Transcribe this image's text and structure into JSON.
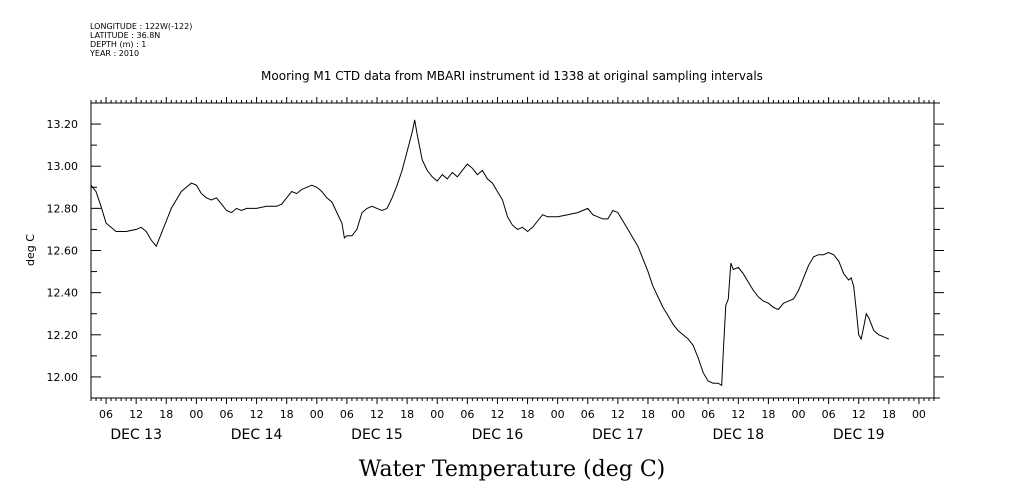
{
  "header": {
    "lines": [
      "LONGITUDE : 122W(-122)",
      "LATITUDE : 36.8N",
      "DEPTH (m) : 1",
      "YEAR : 2010"
    ]
  },
  "chart_data": {
    "type": "line",
    "title": "Mooring M1 CTD data from MBARI instrument id 1338 at original sampling intervals",
    "xlabel": "Water Temperature (deg C)",
    "ylabel": "deg C",
    "ylim": [
      11.9,
      13.3
    ],
    "yticks": [
      12.0,
      12.2,
      12.4,
      12.6,
      12.8,
      13.0,
      13.2
    ],
    "ytick_labels": [
      "12.00",
      "12.20",
      "12.40",
      "12.60",
      "12.80",
      "13.00",
      "13.20"
    ],
    "x_units": "hours since 2010-12-13 00:00",
    "xlim": [
      3,
      171
    ],
    "hour_ticks": [
      {
        "h": 6,
        "label": "06"
      },
      {
        "h": 12,
        "label": "12"
      },
      {
        "h": 18,
        "label": "18"
      },
      {
        "h": 24,
        "label": "00"
      },
      {
        "h": 30,
        "label": "06"
      },
      {
        "h": 36,
        "label": "12"
      },
      {
        "h": 42,
        "label": "18"
      },
      {
        "h": 48,
        "label": "00"
      },
      {
        "h": 54,
        "label": "06"
      },
      {
        "h": 60,
        "label": "12"
      },
      {
        "h": 66,
        "label": "18"
      },
      {
        "h": 72,
        "label": "00"
      },
      {
        "h": 78,
        "label": "06"
      },
      {
        "h": 84,
        "label": "12"
      },
      {
        "h": 90,
        "label": "18"
      },
      {
        "h": 96,
        "label": "00"
      },
      {
        "h": 102,
        "label": "06"
      },
      {
        "h": 108,
        "label": "12"
      },
      {
        "h": 114,
        "label": "18"
      },
      {
        "h": 120,
        "label": "00"
      },
      {
        "h": 126,
        "label": "06"
      },
      {
        "h": 132,
        "label": "12"
      },
      {
        "h": 138,
        "label": "18"
      },
      {
        "h": 144,
        "label": "00"
      },
      {
        "h": 150,
        "label": "06"
      },
      {
        "h": 156,
        "label": "12"
      },
      {
        "h": 162,
        "label": "18"
      },
      {
        "h": 168,
        "label": "00"
      }
    ],
    "day_labels": [
      {
        "h": 12,
        "label": "DEC 13"
      },
      {
        "h": 36,
        "label": "DEC 14"
      },
      {
        "h": 60,
        "label": "DEC 15"
      },
      {
        "h": 84,
        "label": "DEC 16"
      },
      {
        "h": 108,
        "label": "DEC 17"
      },
      {
        "h": 132,
        "label": "DEC 18"
      },
      {
        "h": 156,
        "label": "DEC 19"
      }
    ],
    "grid": false,
    "series": [
      {
        "points": [
          [
            3,
            12.91
          ],
          [
            4,
            12.88
          ],
          [
            5,
            12.81
          ],
          [
            6,
            12.73
          ],
          [
            8,
            12.69
          ],
          [
            10,
            12.69
          ],
          [
            12,
            12.7
          ],
          [
            13,
            12.71
          ],
          [
            14,
            12.69
          ],
          [
            15,
            12.65
          ],
          [
            16,
            12.62
          ],
          [
            17,
            12.68
          ],
          [
            18,
            12.74
          ],
          [
            19,
            12.8
          ],
          [
            20,
            12.84
          ],
          [
            21,
            12.88
          ],
          [
            22,
            12.9
          ],
          [
            23,
            12.92
          ],
          [
            24,
            12.91
          ],
          [
            25,
            12.87
          ],
          [
            26,
            12.85
          ],
          [
            27,
            12.84
          ],
          [
            28,
            12.85
          ],
          [
            29,
            12.82
          ],
          [
            30,
            12.79
          ],
          [
            31,
            12.78
          ],
          [
            32,
            12.8
          ],
          [
            33,
            12.79
          ],
          [
            34,
            12.8
          ],
          [
            36,
            12.8
          ],
          [
            38,
            12.81
          ],
          [
            40,
            12.81
          ],
          [
            41,
            12.82
          ],
          [
            42,
            12.85
          ],
          [
            43,
            12.88
          ],
          [
            44,
            12.87
          ],
          [
            45,
            12.89
          ],
          [
            46,
            12.9
          ],
          [
            47,
            12.91
          ],
          [
            48,
            12.9
          ],
          [
            49,
            12.88
          ],
          [
            50,
            12.85
          ],
          [
            51,
            12.83
          ],
          [
            52,
            12.78
          ],
          [
            53,
            12.73
          ],
          [
            53.5,
            12.66
          ],
          [
            54,
            12.67
          ],
          [
            55,
            12.67
          ],
          [
            56,
            12.7
          ],
          [
            57,
            12.78
          ],
          [
            58,
            12.8
          ],
          [
            59,
            12.81
          ],
          [
            60,
            12.8
          ],
          [
            61,
            12.79
          ],
          [
            62,
            12.8
          ],
          [
            63,
            12.85
          ],
          [
            64,
            12.91
          ],
          [
            65,
            12.98
          ],
          [
            66,
            13.07
          ],
          [
            67,
            13.16
          ],
          [
            67.5,
            13.22
          ],
          [
            68,
            13.15
          ],
          [
            69,
            13.03
          ],
          [
            70,
            12.98
          ],
          [
            71,
            12.95
          ],
          [
            72,
            12.93
          ],
          [
            73,
            12.96
          ],
          [
            74,
            12.94
          ],
          [
            75,
            12.97
          ],
          [
            76,
            12.95
          ],
          [
            77,
            12.98
          ],
          [
            78,
            13.01
          ],
          [
            79,
            12.99
          ],
          [
            80,
            12.96
          ],
          [
            81,
            12.98
          ],
          [
            82,
            12.94
          ],
          [
            83,
            12.92
          ],
          [
            84,
            12.88
          ],
          [
            85,
            12.84
          ],
          [
            86,
            12.76
          ],
          [
            87,
            12.72
          ],
          [
            88,
            12.7
          ],
          [
            89,
            12.71
          ],
          [
            90,
            12.69
          ],
          [
            91,
            12.71
          ],
          [
            92,
            12.74
          ],
          [
            93,
            12.77
          ],
          [
            94,
            12.76
          ],
          [
            96,
            12.76
          ],
          [
            98,
            12.77
          ],
          [
            100,
            12.78
          ],
          [
            102,
            12.8
          ],
          [
            103,
            12.77
          ],
          [
            104,
            12.76
          ],
          [
            105,
            12.75
          ],
          [
            106,
            12.75
          ],
          [
            107,
            12.79
          ],
          [
            108,
            12.78
          ],
          [
            109,
            12.74
          ],
          [
            110,
            12.7
          ],
          [
            111,
            12.66
          ],
          [
            112,
            12.62
          ],
          [
            113,
            12.56
          ],
          [
            114,
            12.5
          ],
          [
            115,
            12.43
          ],
          [
            116,
            12.38
          ],
          [
            117,
            12.33
          ],
          [
            118,
            12.29
          ],
          [
            119,
            12.25
          ],
          [
            120,
            12.22
          ],
          [
            121,
            12.2
          ],
          [
            122,
            12.18
          ],
          [
            123,
            12.15
          ],
          [
            124,
            12.09
          ],
          [
            125,
            12.02
          ],
          [
            126,
            11.98
          ],
          [
            127,
            11.97
          ],
          [
            128,
            11.97
          ],
          [
            128.7,
            11.96
          ],
          [
            129,
            12.12
          ],
          [
            129.5,
            12.34
          ],
          [
            130,
            12.37
          ],
          [
            130.5,
            12.54
          ],
          [
            131,
            12.51
          ],
          [
            132,
            12.52
          ],
          [
            133,
            12.49
          ],
          [
            134,
            12.45
          ],
          [
            135,
            12.41
          ],
          [
            136,
            12.38
          ],
          [
            137,
            12.36
          ],
          [
            138,
            12.35
          ],
          [
            139,
            12.33
          ],
          [
            140,
            12.32
          ],
          [
            141,
            12.35
          ],
          [
            142,
            12.36
          ],
          [
            143,
            12.37
          ],
          [
            144,
            12.41
          ],
          [
            145,
            12.47
          ],
          [
            146,
            12.53
          ],
          [
            147,
            12.57
          ],
          [
            148,
            12.58
          ],
          [
            149,
            12.58
          ],
          [
            150,
            12.59
          ],
          [
            151,
            12.58
          ],
          [
            152,
            12.55
          ],
          [
            153,
            12.49
          ],
          [
            154,
            12.46
          ],
          [
            154.5,
            12.47
          ],
          [
            155,
            12.43
          ],
          [
            155.5,
            12.32
          ],
          [
            156,
            12.2
          ],
          [
            156.5,
            12.18
          ],
          [
            157,
            12.24
          ],
          [
            157.5,
            12.3
          ],
          [
            158,
            12.28
          ],
          [
            159,
            12.22
          ],
          [
            160,
            12.2
          ],
          [
            161,
            12.19
          ],
          [
            162,
            12.18
          ]
        ]
      }
    ]
  }
}
